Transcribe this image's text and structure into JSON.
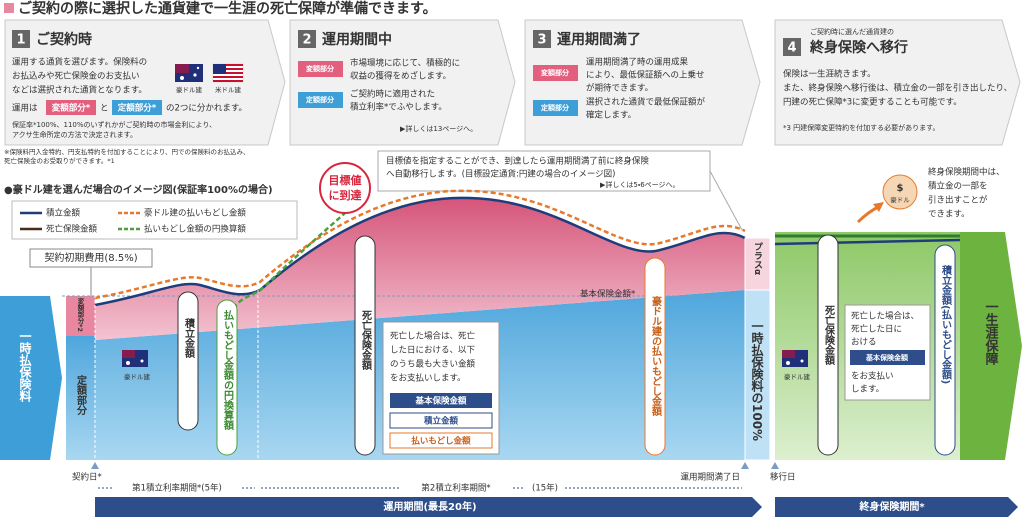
{
  "header": {
    "title": "ご契約の際に選択した通貨建で一生涯の死亡保障が準備できます。"
  },
  "steps": [
    {
      "number": "1",
      "title": "ご契約時",
      "body": [
        "運用する通貨を選びます。保険料の",
        "お払込みや死亡保険金のお支払い",
        "などは選択された通貨となります。"
      ],
      "flags": [
        "豪ドル建",
        "米ドル建"
      ],
      "split": {
        "lead": "運用は",
        "variable": "変額部分*",
        "and": "と",
        "fixed": "定額部分*",
        "tail": "の2つに分かれます。"
      },
      "notes": [
        "保証率*100%、110%のいずれかがご契約時の市場金利により、",
        "アクサ生命所定の方法で決定されます。"
      ],
      "footnote": [
        "※保険料円入金特約、円支払特約を付加することにより、円での保険料のお払込み、",
        "死亡保険金のお受取りができます。*1"
      ]
    },
    {
      "number": "2",
      "title": "運用期間中",
      "rows": [
        {
          "badge": "変額部分",
          "lines": [
            "市場環境に応じて、積極的に",
            "収益の獲得をめざします。"
          ]
        },
        {
          "badge": "定額部分",
          "lines": [
            "ご契約時に適用された",
            "積立利率*でふやします。"
          ]
        }
      ],
      "ref": "▶詳しくは13ページへ。"
    },
    {
      "number": "3",
      "title": "運用期間満了",
      "rows": [
        {
          "badge": "変額部分",
          "lines": [
            "運用期間満了時の運用成果",
            "により、最低保証額への上乗せ",
            "が期待できます。"
          ]
        },
        {
          "badge": "定額部分",
          "lines": [
            "選択された通貨で最低保証額が",
            "確定します。"
          ]
        }
      ]
    },
    {
      "number": "4",
      "subtitle": "ご契約時に選んだ通貨建の",
      "title": "終身保険へ移行",
      "body": [
        "保険は一生涯続きます。",
        "また、終身保険へ移行後は、積立金の一部を引き出したり、",
        "円建の死亡保障*3に変更することも可能です。"
      ],
      "note": "*3 円建保障変更特約を付加する必要があります。"
    }
  ],
  "callout": {
    "lines": [
      "目標値を指定することができ、到達したら運用期間満了前に終身保険",
      "へ自動移行します。(目標設定通貨:円建の場合のイメージ図)"
    ],
    "ref": "▶詳しくは5・6ページへ。"
  },
  "illustration": {
    "title": "●豪ドル建を選んだ場合のイメージ図(保証率100%の場合)",
    "legend": [
      "積立金額",
      "豪ドル建の払いもどし金額",
      "死亡保険金額",
      "払いもどし金額の円換算額"
    ],
    "initial_cost": "契約初期費用(8.5%)",
    "target": [
      "目標値",
      "に到達"
    ],
    "basic_amount": "基本保険金額*",
    "premium": "一時払保険料",
    "variable": "変額部分*2",
    "fixed": "定額部分",
    "currency": "豪ドル建",
    "pills": {
      "accumulation": "積立金額",
      "yen_refund": "払いもどし金額の円換算額",
      "death": "死亡保険金額",
      "aud_refund": "豪ドル建の払いもどし金額"
    },
    "plus": "プラスα",
    "full_premium": "一時払保険料の100%",
    "death_box": {
      "lines": [
        "死亡した場合は、死亡",
        "した日における、以下",
        "のうち最も大きい金額",
        "をお支払いします。"
      ],
      "items": [
        "基本保険金額",
        "積立金額",
        "払いもどし金額"
      ]
    },
    "whole_life": {
      "withdraw": [
        "終身保険期間中は、",
        "積立金の一部を",
        "引き出すことが",
        "できます。"
      ],
      "bag": {
        "symbol": "$",
        "label": "豪ドル"
      },
      "death": "死亡保険金額",
      "currency": "豪ドル建",
      "death_box": {
        "lines": [
          "死亡した場合は、",
          "死亡した日に",
          "おける"
        ],
        "badge": "基本保険金額",
        "tail": [
          "をお支払い",
          "します。"
        ]
      },
      "accumulation": "積立金額(払いもどし金額)",
      "lifetime": "一生涯保障"
    },
    "timeline": {
      "start": "契約日*",
      "period1": "第1積立利率期間*(5年)",
      "period2": "第2積立利率期間*",
      "period2_length": "(15年)",
      "maturity": "運用期間満了日",
      "transition": "移行日",
      "operation": "運用期間(最長20年)",
      "whole_life": "終身保険期間*"
    }
  }
}
